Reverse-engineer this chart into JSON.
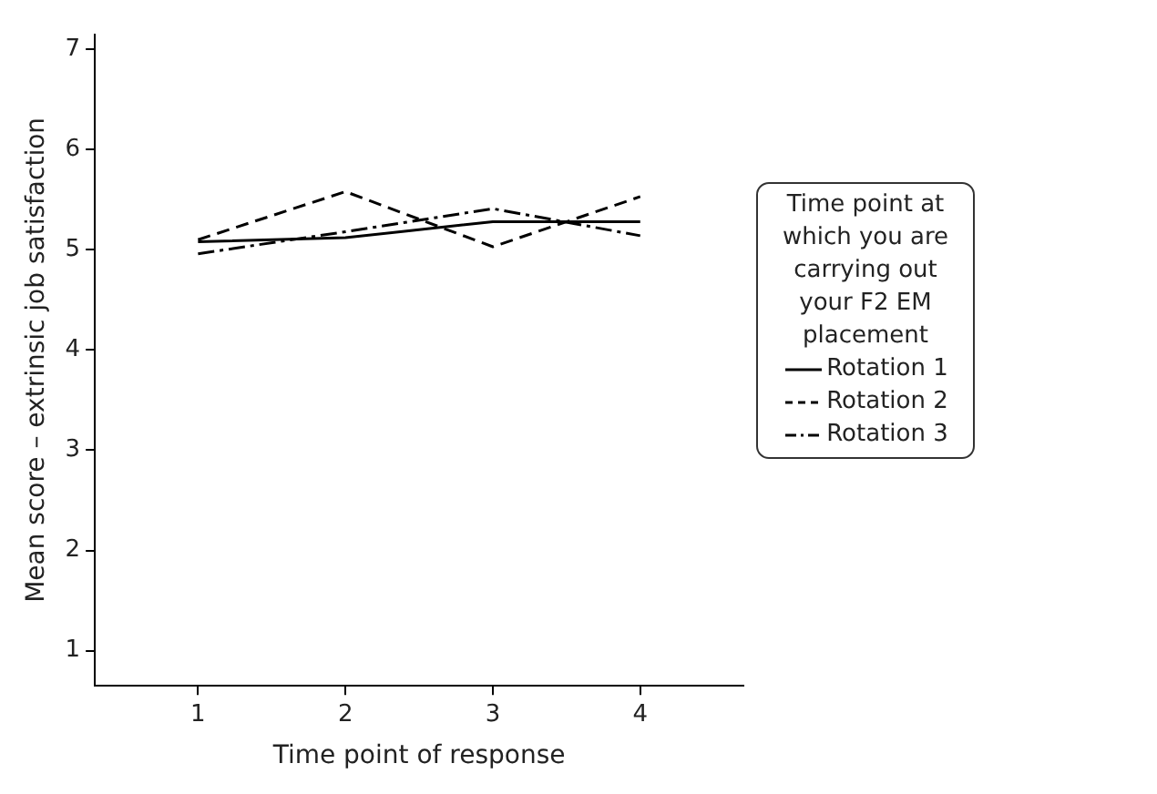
{
  "chart_data": {
    "type": "line",
    "x": [
      1,
      2,
      3,
      4
    ],
    "xlabel": "Time point of response",
    "ylabel": "Mean score – extrinsic job satisfaction",
    "legend_title": "Time point at which you are carrying out your F2 EM placement",
    "series": [
      {
        "name": "Rotation 1",
        "color": "#000000",
        "line_style": "solid",
        "values": [
          5.08,
          5.12,
          5.28,
          5.28
        ]
      },
      {
        "name": "Rotation 2",
        "color": "#000000",
        "line_style": "dashed",
        "values": [
          5.1,
          5.58,
          5.03,
          5.53
        ]
      },
      {
        "name": "Rotation 3",
        "color": "#000000",
        "line_style": "dashdot",
        "values": [
          4.96,
          5.18,
          5.41,
          5.14
        ]
      }
    ],
    "xlim": [
      0.3,
      4.7
    ],
    "xticks": [
      1,
      2,
      3,
      4
    ],
    "ylim": [
      0.65,
      7.15
    ],
    "yticks": [
      1,
      2,
      3,
      4,
      5,
      6,
      7
    ],
    "grid": false,
    "legend": "right",
    "marker": "none"
  }
}
